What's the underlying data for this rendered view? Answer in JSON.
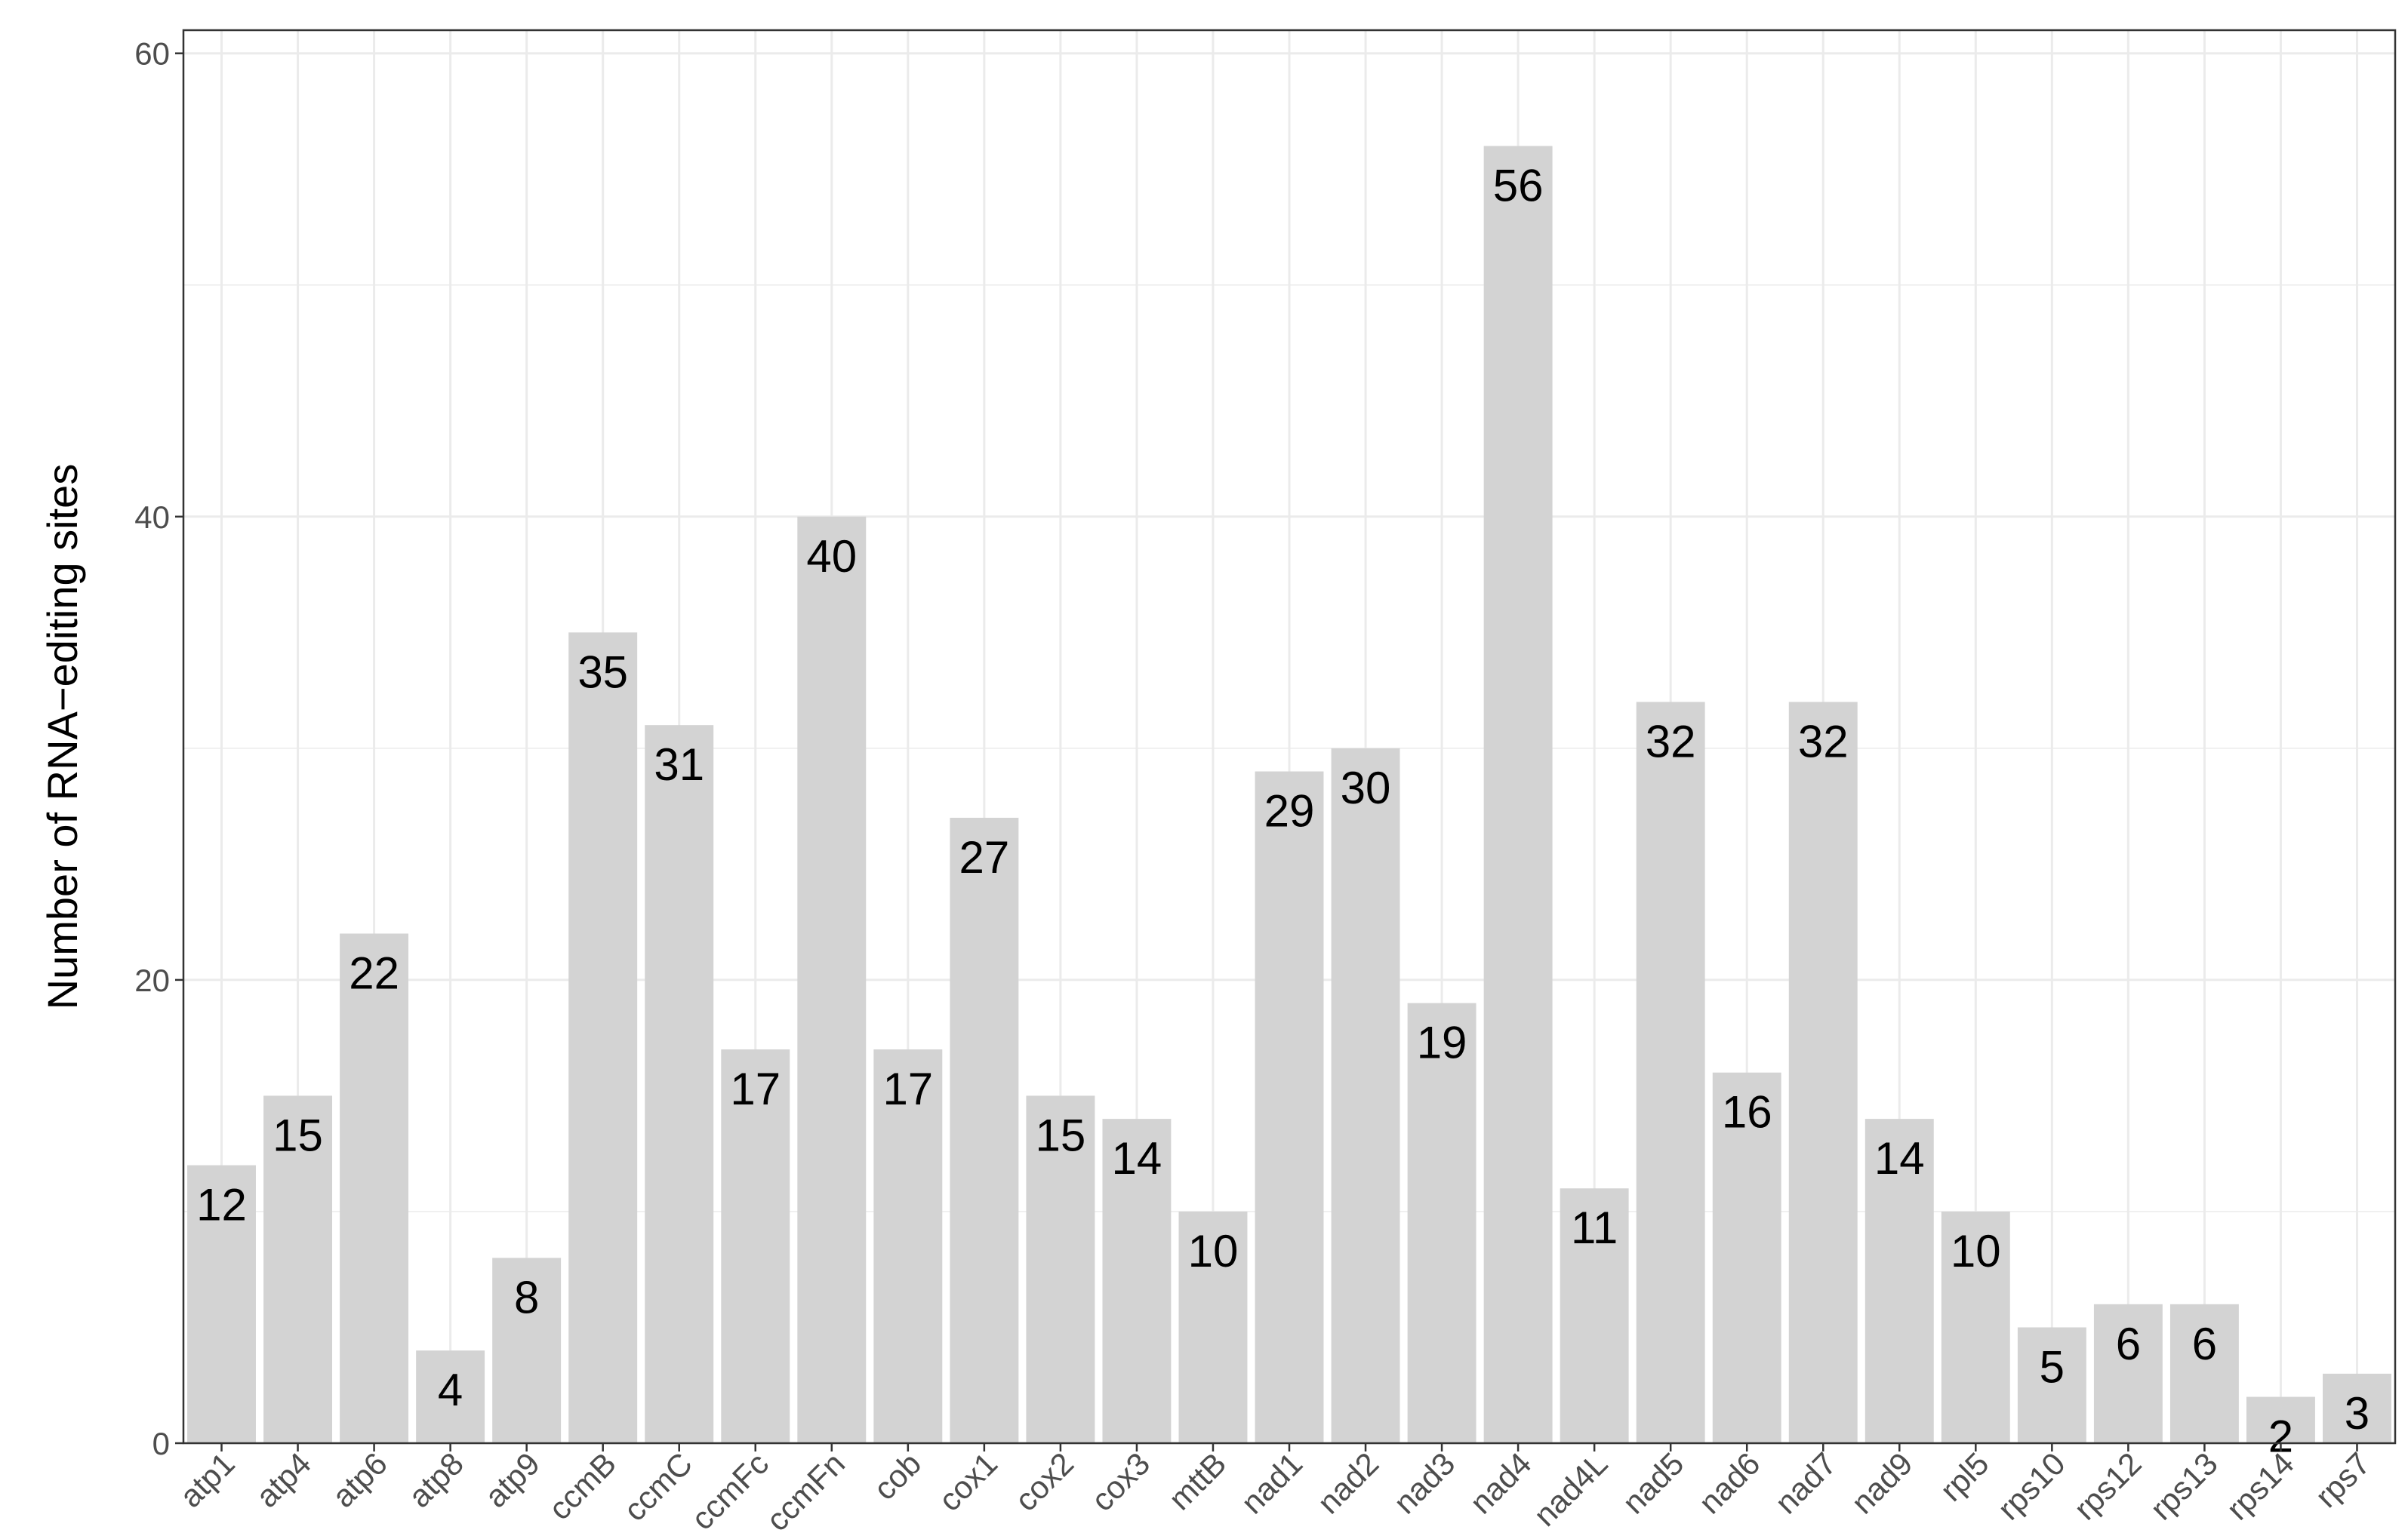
{
  "chart_data": {
    "type": "bar",
    "title": "",
    "xlabel": "",
    "ylabel": "Number of RNA−editing sites",
    "ylim": [
      0,
      61
    ],
    "yticks": [
      0,
      20,
      40,
      60
    ],
    "grid": true,
    "legend": "none",
    "categories": [
      "atp1",
      "atp4",
      "atp6",
      "atp8",
      "atp9",
      "ccmB",
      "ccmC",
      "ccmFc",
      "ccmFn",
      "cob",
      "cox1",
      "cox2",
      "cox3",
      "mttB",
      "nad1",
      "nad2",
      "nad3",
      "nad4",
      "nad4L",
      "nad5",
      "nad6",
      "nad7",
      "nad9",
      "rpl5",
      "rps10",
      "rps12",
      "rps13",
      "rps14",
      "rps7"
    ],
    "values": [
      12,
      15,
      22,
      4,
      8,
      35,
      31,
      17,
      40,
      17,
      27,
      15,
      14,
      10,
      29,
      30,
      19,
      56,
      11,
      32,
      16,
      32,
      14,
      10,
      5,
      6,
      6,
      2,
      3
    ]
  },
  "colors": {
    "bar_fill": "#d3d3d3",
    "grid": "#ebebeb",
    "panel_border": "#333333",
    "tick_text": "#4d4d4d",
    "label_text": "#000000"
  }
}
